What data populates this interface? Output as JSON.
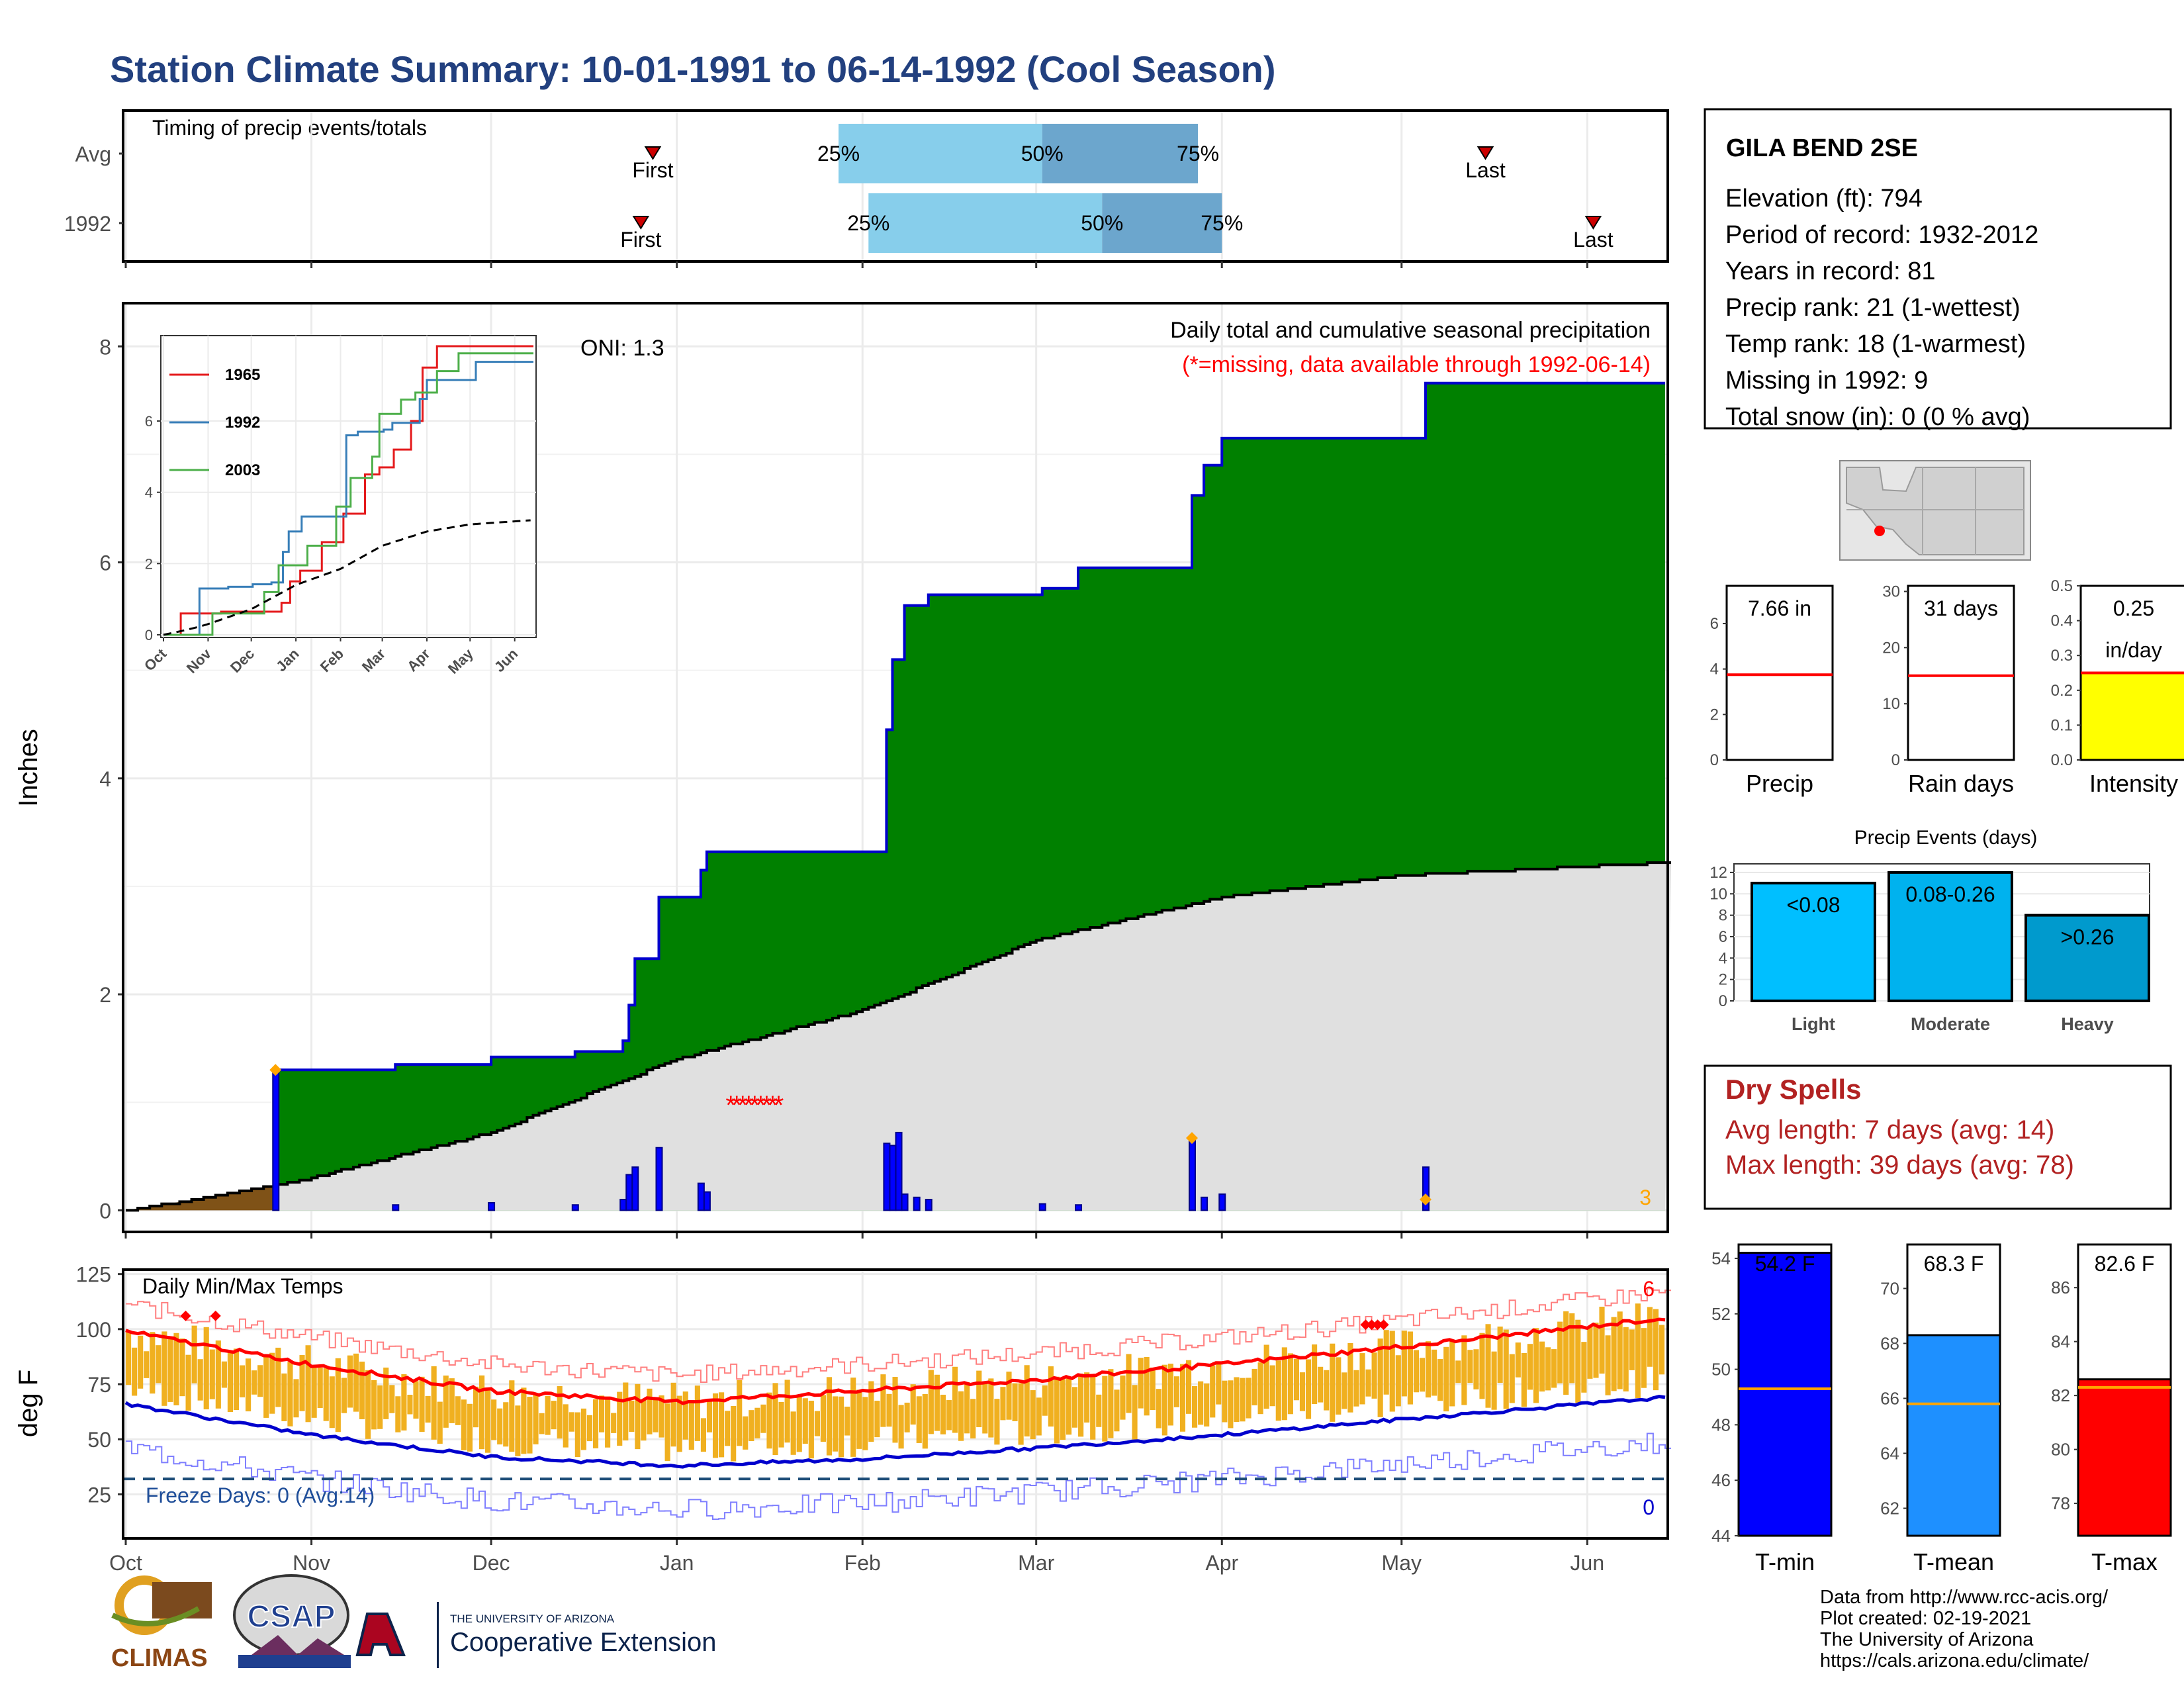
{
  "title": "Station Climate Summary: 10-01-1991 to 06-14-1992 (Cool Season)",
  "colors": {
    "title": "#22407f",
    "precip_fill": "#008000",
    "climo_fill": "#e0e0e0",
    "outline": "#0000cd",
    "bars": "#0000ff",
    "missing": "#ff0000",
    "temp_band": "#f0b020",
    "dry": "#b22222"
  },
  "timing": {
    "title": "Timing of precip events/totals",
    "rows": [
      {
        "label": "Avg",
        "first_label": "First",
        "last_label": "Last",
        "q25": "25%",
        "q50": "50%",
        "q75": "75%",
        "first_doy": 88,
        "last_doy": 227,
        "p25_doy": 119,
        "p50_doy": 153,
        "p75_doy": 179
      },
      {
        "label": "1992",
        "first_label": "First",
        "last_label": "Last",
        "q25": "25%",
        "q50": "50%",
        "q75": "75%",
        "first_doy": 86,
        "last_doy": 245,
        "p25_doy": 124,
        "p50_doy": 163,
        "p75_doy": 183
      }
    ]
  },
  "main": {
    "ylabel": "Inches",
    "oni": "ONI: 1.3",
    "caption": "Daily total and cumulative seasonal precipitation",
    "missing_note": "(*=missing, data available through 1992-06-14)",
    "count_label": "3",
    "y_ticks": [
      "0",
      "2",
      "4",
      "6",
      "8"
    ],
    "x_ticks": [
      "Oct",
      "Nov",
      "Dec",
      "Jan",
      "Feb",
      "Mar",
      "Apr",
      "May",
      "Jun"
    ]
  },
  "inset": {
    "legend": [
      {
        "name": "1965",
        "color": "#e41a1c"
      },
      {
        "name": "1992",
        "color": "#377eb8"
      },
      {
        "name": "2003",
        "color": "#4daf4a"
      }
    ],
    "y_ticks": [
      "0",
      "2",
      "4",
      "6"
    ],
    "x_ticks": [
      "Oct",
      "Nov",
      "Dec",
      "Jan",
      "Feb",
      "Mar",
      "Apr",
      "May",
      "Jun"
    ]
  },
  "temp": {
    "ylabel": "deg F",
    "title": "Daily Min/Max Temps",
    "freeze": "Freeze Days: 0 (Avg:14)",
    "hot_count": "6",
    "cold_count": "0",
    "y_ticks": [
      "25",
      "50",
      "75",
      "100",
      "125"
    ],
    "x_ticks": [
      "Oct",
      "Nov",
      "Dec",
      "Jan",
      "Feb",
      "Mar",
      "Apr",
      "May",
      "Jun"
    ]
  },
  "station": {
    "name": "GILA BEND 2SE",
    "lines": [
      "Elevation (ft): 794",
      "Period of record: 1932-2012",
      "Years in record: 81",
      "Precip rank: 21 (1-wettest)",
      "Temp rank: 18 (1-warmest)",
      "Missing in 1992: 9",
      "Total snow (in): 0 (0 % avg)"
    ]
  },
  "mini": [
    {
      "label": "Precip",
      "value_text": "7.66 in",
      "y_ticks": [
        "0",
        "2",
        "4",
        "6"
      ],
      "ymax": 7.66,
      "avg": 3.75,
      "fill": "#ffffff"
    },
    {
      "label": "Rain days",
      "value_text": "31 days",
      "y_ticks": [
        "0",
        "10",
        "20",
        "30"
      ],
      "ymax": 31,
      "avg": 15,
      "fill": "#ffffff"
    },
    {
      "label": "Intensity",
      "value_text": "0.25",
      "value_text2": "in/day",
      "y_ticks": [
        "0.0",
        "0.1",
        "0.2",
        "0.3",
        "0.4",
        "0.5"
      ],
      "ymax": 0.5,
      "value": 0.25,
      "avg": 0.25,
      "fill": "#ffff00"
    }
  ],
  "events": {
    "title": "Precip Events (days)",
    "y_ticks": [
      "0",
      "2",
      "4",
      "6",
      "8",
      "10",
      "12"
    ],
    "bars": [
      {
        "name": "Light",
        "label": "<0.08",
        "value": 11,
        "color": "#00bfff"
      },
      {
        "name": "Moderate",
        "label": "0.08-0.26",
        "value": 12,
        "color": "#00b2ee"
      },
      {
        "name": "Heavy",
        "label": ">0.26",
        "value": 8,
        "color": "#009acd"
      }
    ]
  },
  "dry": {
    "title": "Dry Spells",
    "avg": "Avg length: 7 days (avg: 14)",
    "max": "Max length: 39 days (avg: 78)"
  },
  "temp_bars": [
    {
      "label": "T-min",
      "value_text": "54.2 F",
      "value": 54.2,
      "avg": 49.3,
      "ymin": 44,
      "ymax": 54.5,
      "y_ticks": [
        "44",
        "46",
        "48",
        "50",
        "52",
        "54"
      ],
      "fill": "#0000ff"
    },
    {
      "label": "T-mean",
      "value_text": "68.3 F",
      "value": 68.3,
      "avg": 65.8,
      "ymin": 61,
      "ymax": 71.6,
      "y_ticks": [
        "62",
        "64",
        "66",
        "68",
        "70"
      ],
      "fill": "#1e90ff"
    },
    {
      "label": "T-max",
      "value_text": "82.6 F",
      "value": 82.6,
      "avg": 82.3,
      "ymin": 76.8,
      "ymax": 87.6,
      "y_ticks": [
        "78",
        "80",
        "82",
        "84",
        "86"
      ],
      "fill": "#ff0000"
    }
  ],
  "footer": {
    "credits": [
      "Data from http://www.rcc-acis.org/",
      "Plot created: 02-19-2021",
      "The University of Arizona",
      "https://cals.arizona.edu/climate/"
    ],
    "climas": "CLIMAS",
    "csap": "CSAP",
    "ua_small": "THE UNIVERSITY OF ARIZONA",
    "ua_big": "Cooperative Extension"
  },
  "chart_data": [
    {
      "type": "area",
      "title": "Daily total and cumulative seasonal precipitation",
      "ylabel": "Inches",
      "ylim": [
        0,
        8.4
      ],
      "x_start": "1991-10-01",
      "x_end": "1992-06-14",
      "cumulative_steps": [
        [
          "1991-10-01",
          0
        ],
        [
          "1991-10-26",
          1.3
        ],
        [
          "1991-11-15",
          1.35
        ],
        [
          "1991-12-01",
          1.42
        ],
        [
          "1991-12-15",
          1.47
        ],
        [
          "1991-12-23",
          1.57
        ],
        [
          "1991-12-24",
          1.9
        ],
        [
          "1991-12-25",
          2.33
        ],
        [
          "1991-12-29",
          2.9
        ],
        [
          "1992-01-05",
          3.15
        ],
        [
          "1992-01-06",
          3.32
        ],
        [
          "1992-02-05",
          4.45
        ],
        [
          "1992-02-06",
          5.1
        ],
        [
          "1992-02-08",
          5.6
        ],
        [
          "1992-02-12",
          5.7
        ],
        [
          "1992-03-02",
          5.76
        ],
        [
          "1992-03-08",
          5.95
        ],
        [
          "1992-03-27",
          6.62
        ],
        [
          "1992-03-29",
          6.9
        ],
        [
          "1992-04-01",
          7.15
        ],
        [
          "1992-05-05",
          7.66
        ],
        [
          "1992-06-14",
          7.66
        ]
      ],
      "climatology_steps": [
        [
          "1991-10-01",
          0
        ],
        [
          "1991-10-15",
          0.12
        ],
        [
          "1991-10-25",
          0.22
        ],
        [
          "1991-11-01",
          0.3
        ],
        [
          "1991-12-01",
          0.72
        ],
        [
          "1992-01-01",
          1.4
        ],
        [
          "1992-02-01",
          1.85
        ],
        [
          "1992-03-01",
          2.5
        ],
        [
          "1992-04-01",
          2.9
        ],
        [
          "1992-05-01",
          3.1
        ],
        [
          "1992-06-14",
          3.22
        ]
      ],
      "daily": [
        [
          "1991-10-26",
          1.3
        ],
        [
          "1991-11-15",
          0.05
        ],
        [
          "1991-12-01",
          0.07
        ],
        [
          "1991-12-15",
          0.05
        ],
        [
          "1991-12-23",
          0.1
        ],
        [
          "1991-12-24",
          0.33
        ],
        [
          "1991-12-25",
          0.4
        ],
        [
          "1991-12-29",
          0.58
        ],
        [
          "1992-01-05",
          0.25
        ],
        [
          "1992-01-06",
          0.17
        ],
        [
          "1992-02-05",
          0.62
        ],
        [
          "1992-02-06",
          0.6
        ],
        [
          "1992-02-07",
          0.72
        ],
        [
          "1992-02-08",
          0.15
        ],
        [
          "1992-02-10",
          0.12
        ],
        [
          "1992-02-12",
          0.1
        ],
        [
          "1992-03-02",
          0.06
        ],
        [
          "1992-03-08",
          0.05
        ],
        [
          "1992-03-27",
          0.67
        ],
        [
          "1992-03-29",
          0.12
        ],
        [
          "1992-04-01",
          0.15
        ],
        [
          "1992-05-05",
          0.4
        ]
      ],
      "missing_days": [
        "1992-01-10",
        "1992-01-11",
        "1992-01-12",
        "1992-01-13",
        "1992-01-14",
        "1992-01-15",
        "1992-01-16",
        "1992-01-17",
        "1992-01-18"
      ]
    },
    {
      "type": "line",
      "title": "Daily Min/Max Temps",
      "ylabel": "deg F",
      "ylim": [
        5,
        127
      ],
      "freeze_line": 32,
      "avg_max": [
        [
          "1991-10-01",
          99
        ],
        [
          "1991-11-01",
          84
        ],
        [
          "1991-12-01",
          72
        ],
        [
          "1992-01-01",
          67
        ],
        [
          "1992-02-01",
          72
        ],
        [
          "1992-03-01",
          77
        ],
        [
          "1992-04-01",
          84
        ],
        [
          "1992-05-01",
          92
        ],
        [
          "1992-06-14",
          105
        ]
      ],
      "avg_min": [
        [
          "1991-10-01",
          66
        ],
        [
          "1991-11-01",
          52
        ],
        [
          "1991-12-01",
          42
        ],
        [
          "1992-01-01",
          38
        ],
        [
          "1992-02-01",
          41
        ],
        [
          "1992-03-01",
          46
        ],
        [
          "1992-04-01",
          52
        ],
        [
          "1992-05-01",
          59
        ],
        [
          "1992-06-14",
          69
        ]
      ]
    }
  ]
}
